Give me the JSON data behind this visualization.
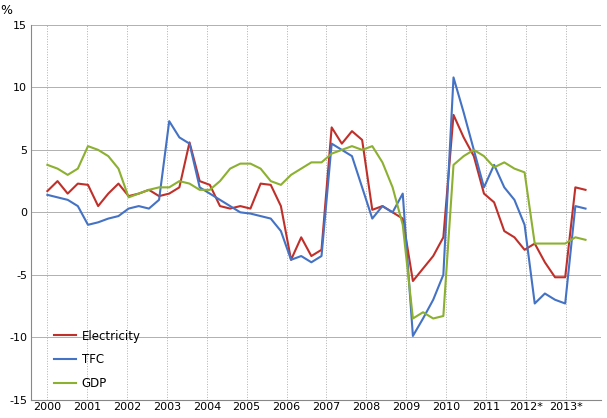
{
  "ylabel": "%",
  "ylim": [
    -15,
    15
  ],
  "yticks": [
    -15,
    -10,
    -5,
    0,
    5,
    10,
    15
  ],
  "x_labels": [
    "2000",
    "2001",
    "2002",
    "2003",
    "2004",
    "2005",
    "2006",
    "2007",
    "2008",
    "2009",
    "2010",
    "2011",
    "2012*",
    "2013*"
  ],
  "background_color": "#ffffff",
  "grid_color": "#b0b0b0",
  "electricity_color": "#c0302a",
  "tfc_color": "#4472c4",
  "gdp_color": "#8cb030",
  "legend_labels": [
    "Electricity",
    "TFC",
    "GDP"
  ],
  "elec": [
    1.7,
    2.5,
    1.5,
    2.3,
    2.2,
    0.5,
    1.5,
    2.3,
    1.3,
    1.5,
    1.8,
    1.3,
    1.5,
    2.0,
    5.6,
    2.5,
    2.2,
    0.5,
    0.3,
    0.5,
    0.3,
    2.3,
    2.2,
    0.5,
    -3.8,
    -2.0,
    -3.5,
    -3.0,
    6.8,
    5.5,
    6.5,
    5.8,
    0.2,
    0.5,
    0.0,
    -0.5,
    -5.5,
    -4.5,
    -3.5,
    -2.0,
    7.8,
    6.0,
    4.5,
    1.5,
    0.8,
    -1.5,
    -2.0,
    -3.0,
    -2.5,
    -4.0,
    -5.2,
    -5.2,
    2.0,
    1.8
  ],
  "tfc": [
    1.4,
    1.2,
    1.0,
    0.5,
    -1.0,
    -0.8,
    -0.5,
    -0.3,
    0.3,
    0.5,
    0.3,
    1.0,
    7.3,
    6.0,
    5.5,
    2.0,
    1.5,
    1.0,
    0.5,
    0.0,
    -0.1,
    -0.3,
    -0.5,
    -1.5,
    -3.8,
    -3.5,
    -4.0,
    -3.5,
    5.5,
    5.0,
    4.5,
    2.0,
    -0.5,
    0.5,
    0.0,
    1.5,
    -9.9,
    -8.5,
    -7.0,
    -5.0,
    10.8,
    8.0,
    5.0,
    2.0,
    3.8,
    2.0,
    1.0,
    -1.0,
    -7.3,
    -6.5,
    -7.0,
    -7.3,
    0.5,
    0.3
  ],
  "gdp": [
    3.8,
    3.5,
    3.0,
    3.5,
    5.3,
    5.0,
    4.5,
    3.5,
    1.2,
    1.5,
    1.8,
    2.0,
    2.0,
    2.5,
    2.3,
    1.8,
    1.8,
    2.5,
    3.5,
    3.9,
    3.9,
    3.5,
    2.5,
    2.2,
    3.0,
    3.5,
    4.0,
    4.0,
    4.7,
    5.0,
    5.3,
    5.0,
    5.3,
    4.0,
    2.0,
    -1.0,
    -8.5,
    -8.0,
    -8.5,
    -8.3,
    3.8,
    4.5,
    5.0,
    4.5,
    3.6,
    4.0,
    3.5,
    3.2,
    -2.5,
    -2.5,
    -2.5,
    -2.5,
    -2.0,
    -2.2
  ]
}
